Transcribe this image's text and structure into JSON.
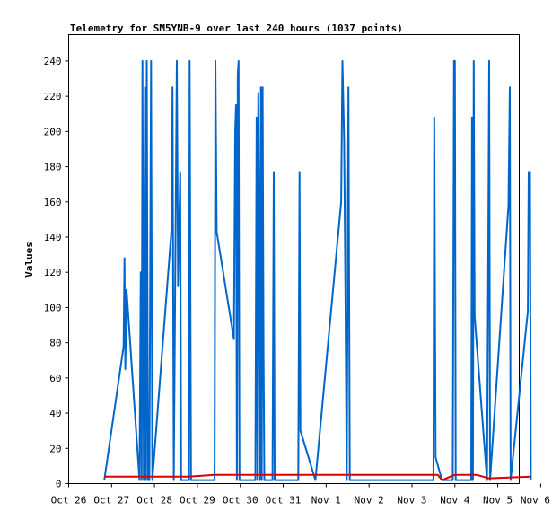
{
  "chart_data": {
    "type": "line",
    "title": "Telemetry for SM5YNB-9 over last 240 hours (1037 points)",
    "xlabel": "",
    "ylabel": "Values",
    "x_tick_labels": [
      "Oct 26",
      "Oct 27",
      "Oct 28",
      "Oct 29",
      "Oct 30",
      "Oct 31",
      "Nov 1",
      "Nov 2",
      "Nov 3",
      "Nov 4",
      "Nov 5",
      "Nov 6"
    ],
    "xlim_days": [
      0,
      10.5
    ],
    "ylim": [
      0,
      255
    ],
    "y_ticks": [
      0,
      20,
      40,
      60,
      80,
      100,
      120,
      140,
      160,
      180,
      200,
      220,
      240
    ],
    "grid": false,
    "colors": {
      "blue_series": "#0066cc",
      "red_series": "#dd0000"
    },
    "series": [
      {
        "color": "#0066cc",
        "points": [
          [
            0.83,
            2
          ],
          [
            1.28,
            78
          ],
          [
            1.3,
            128
          ],
          [
            1.32,
            65
          ],
          [
            1.35,
            110
          ],
          [
            1.65,
            2
          ],
          [
            1.68,
            120
          ],
          [
            1.7,
            2
          ],
          [
            1.72,
            240
          ],
          [
            1.75,
            2
          ],
          [
            1.78,
            225
          ],
          [
            1.8,
            2
          ],
          [
            1.82,
            240
          ],
          [
            1.85,
            2
          ],
          [
            1.88,
            2
          ],
          [
            1.92,
            240
          ],
          [
            1.95,
            2
          ],
          [
            2.4,
            145
          ],
          [
            2.42,
            225
          ],
          [
            2.45,
            2
          ],
          [
            2.52,
            240
          ],
          [
            2.55,
            112
          ],
          [
            2.6,
            177
          ],
          [
            2.62,
            2
          ],
          [
            2.8,
            2
          ],
          [
            2.82,
            240
          ],
          [
            2.85,
            2
          ],
          [
            3.4,
            2
          ],
          [
            3.42,
            240
          ],
          [
            3.45,
            143
          ],
          [
            3.85,
            82
          ],
          [
            3.88,
            200
          ],
          [
            3.9,
            215
          ],
          [
            3.92,
            2
          ],
          [
            3.94,
            232
          ],
          [
            3.96,
            240
          ],
          [
            3.98,
            2
          ],
          [
            4.35,
            2
          ],
          [
            4.38,
            208
          ],
          [
            4.4,
            2
          ],
          [
            4.42,
            222
          ],
          [
            4.44,
            145
          ],
          [
            4.46,
            2
          ],
          [
            4.48,
            225
          ],
          [
            4.5,
            2
          ],
          [
            4.52,
            225
          ],
          [
            4.54,
            75
          ],
          [
            4.56,
            2
          ],
          [
            4.75,
            2
          ],
          [
            4.78,
            177
          ],
          [
            4.8,
            2
          ],
          [
            5.35,
            2
          ],
          [
            5.38,
            177
          ],
          [
            5.4,
            30
          ],
          [
            5.75,
            2
          ],
          [
            6.35,
            160
          ],
          [
            6.38,
            240
          ],
          [
            6.42,
            195
          ],
          [
            6.45,
            105
          ],
          [
            6.48,
            2
          ],
          [
            6.52,
            225
          ],
          [
            6.55,
            2
          ],
          [
            8.5,
            2
          ],
          [
            8.52,
            208
          ],
          [
            8.55,
            15
          ],
          [
            8.7,
            2
          ],
          [
            8.95,
            2
          ],
          [
            8.98,
            240
          ],
          [
            9.0,
            240
          ],
          [
            9.02,
            2
          ],
          [
            9.38,
            2
          ],
          [
            9.4,
            208
          ],
          [
            9.42,
            2
          ],
          [
            9.44,
            240
          ],
          [
            9.46,
            95
          ],
          [
            9.75,
            2
          ],
          [
            9.78,
            145
          ],
          [
            9.8,
            240
          ],
          [
            9.82,
            2
          ],
          [
            10.25,
            158
          ],
          [
            10.28,
            225
          ],
          [
            10.3,
            2
          ],
          [
            10.7,
            98
          ],
          [
            10.72,
            177
          ],
          [
            10.75,
            177
          ],
          [
            10.77,
            2
          ]
        ]
      },
      {
        "color": "#dd0000",
        "points": [
          [
            0.83,
            4
          ],
          [
            2.8,
            4
          ],
          [
            3.4,
            5
          ],
          [
            8.6,
            5
          ],
          [
            8.7,
            2
          ],
          [
            9.0,
            5
          ],
          [
            9.5,
            5
          ],
          [
            9.8,
            3
          ],
          [
            10.77,
            4
          ]
        ]
      }
    ]
  }
}
